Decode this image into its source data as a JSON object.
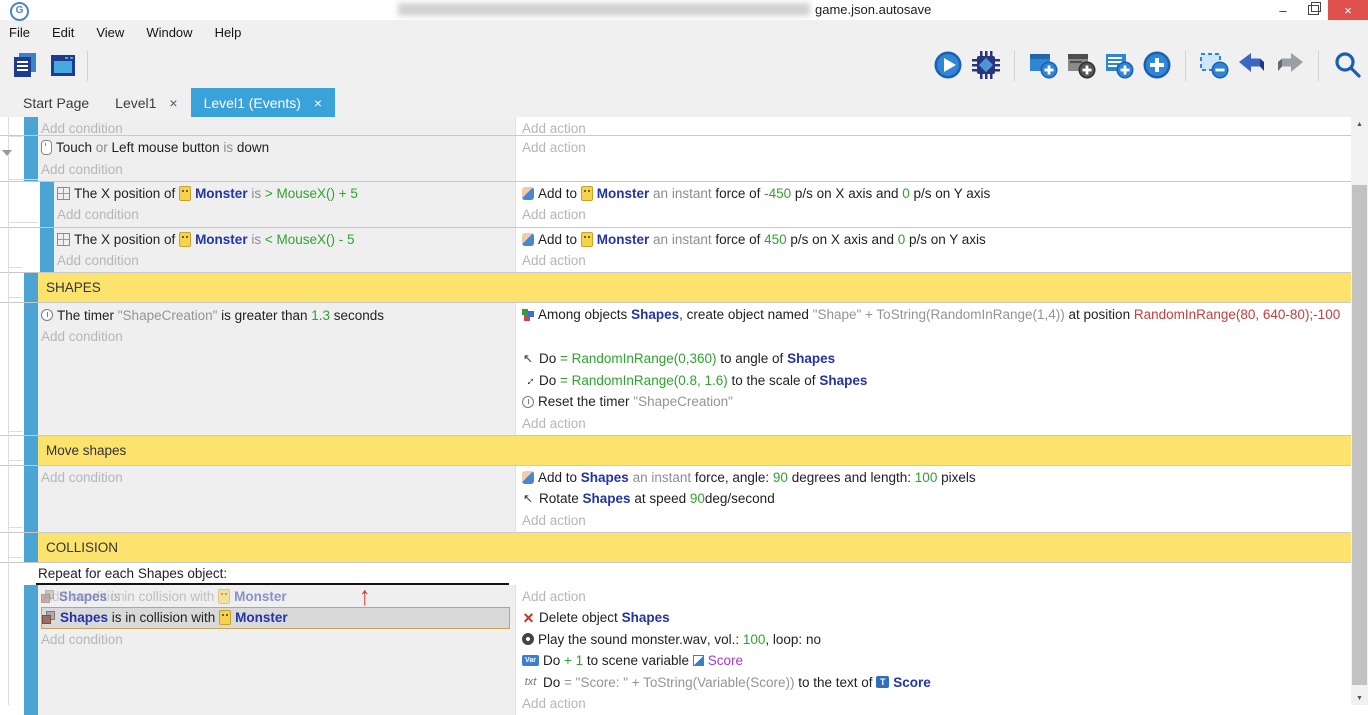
{
  "titlebar": {
    "title": "game.json.autosave",
    "minimize_glyph": "–",
    "close_glyph": "×"
  },
  "menus": [
    "File",
    "Edit",
    "View",
    "Window",
    "Help"
  ],
  "toolbar": {
    "left": [
      "project-manager",
      "scene-window"
    ],
    "right_groups": [
      [
        "play",
        "debug"
      ],
      [
        "add-event",
        "add-sub-event",
        "add-comment",
        "add-circle"
      ],
      [
        "delete-event",
        "undo",
        "redo"
      ],
      [
        "search"
      ]
    ]
  },
  "tabs": [
    {
      "label": "Start Page",
      "active": false,
      "closable": false
    },
    {
      "label": "Level1",
      "active": false,
      "closable": true,
      "close_glyph": "×"
    },
    {
      "label": "Level1 (Events)",
      "active": true,
      "closable": true,
      "close_glyph": "×"
    }
  ],
  "colors": {
    "accent_blue": "#39a2d9",
    "event_bar_blue": "#4ba4d4",
    "section_yellow": "#fce36e",
    "expression_green": "#2fa32f",
    "object_navy": "#2334a6",
    "variable_purple": "#a13bd2",
    "position_red": "#c24040",
    "selection_border": "#c9a452",
    "close_button_red": "#e0514e"
  },
  "scrollbar": {
    "up_glyph": "▲",
    "down_glyph": "▼"
  },
  "sheet": {
    "drag_arrow_glyph": "↑",
    "rows": [
      {
        "kind": "event",
        "indent": 0,
        "clip": true,
        "cond": [
          {
            "ph": "Add condition"
          }
        ],
        "act": [
          {
            "ph": "Add action"
          }
        ]
      },
      {
        "kind": "event",
        "indent": 0,
        "expander": true,
        "cond": [
          {
            "segs": [
              {
                "i": "mouse"
              },
              {
                "t": "Touch ",
                "k": "p"
              },
              {
                "t": "or ",
                "k": "m"
              },
              {
                "t": "Left mouse button ",
                "k": "p"
              },
              {
                "t": "is ",
                "k": "m"
              },
              {
                "t": "down",
                "k": "p"
              }
            ]
          },
          {
            "ph": "Add condition"
          }
        ],
        "act": [
          {
            "ph": "Add action"
          }
        ]
      },
      {
        "kind": "event",
        "indent": 1,
        "cond": [
          {
            "segs": [
              {
                "i": "position"
              },
              {
                "t": "The X position of ",
                "k": "p"
              },
              {
                "i": "monster"
              },
              {
                "t": "Monster ",
                "k": "o"
              },
              {
                "t": "is ",
                "k": "m"
              },
              {
                "t": "> MouseX() + 5",
                "k": "g"
              }
            ]
          },
          {
            "ph": "Add condition"
          }
        ],
        "act": [
          {
            "segs": [
              {
                "i": "force"
              },
              {
                "t": "Add to ",
                "k": "p"
              },
              {
                "i": "monster"
              },
              {
                "t": "Monster ",
                "k": "o"
              },
              {
                "t": "an instant ",
                "k": "m"
              },
              {
                "t": "force of ",
                "k": "p"
              },
              {
                "t": "-450",
                "k": "g"
              },
              {
                "t": " p/s on X axis and ",
                "k": "p"
              },
              {
                "t": "0",
                "k": "g"
              },
              {
                "t": " p/s on Y axis",
                "k": "p"
              }
            ]
          },
          {
            "ph": "Add action"
          }
        ]
      },
      {
        "kind": "event",
        "indent": 1,
        "cond": [
          {
            "segs": [
              {
                "i": "position"
              },
              {
                "t": "The X position of ",
                "k": "p"
              },
              {
                "i": "monster"
              },
              {
                "t": "Monster ",
                "k": "o"
              },
              {
                "t": "is ",
                "k": "m"
              },
              {
                "t": "< MouseX() - 5",
                "k": "g"
              }
            ]
          },
          {
            "ph": "Add condition"
          }
        ],
        "act": [
          {
            "segs": [
              {
                "i": "force"
              },
              {
                "t": "Add to ",
                "k": "p"
              },
              {
                "i": "monster"
              },
              {
                "t": "Monster ",
                "k": "o"
              },
              {
                "t": "an instant ",
                "k": "m"
              },
              {
                "t": "force of ",
                "k": "p"
              },
              {
                "t": "450",
                "k": "g"
              },
              {
                "t": " p/s on X axis and ",
                "k": "p"
              },
              {
                "t": "0",
                "k": "g"
              },
              {
                "t": " p/s on Y axis",
                "k": "p"
              }
            ]
          },
          {
            "ph": "Add action"
          }
        ]
      },
      {
        "kind": "header",
        "label": "SHAPES"
      },
      {
        "kind": "event",
        "indent": 0,
        "cond": [
          {
            "segs": [
              {
                "i": "timer"
              },
              {
                "t": "The timer ",
                "k": "p"
              },
              {
                "t": "\"ShapeCreation\" ",
                "k": "s"
              },
              {
                "t": "is greater than ",
                "k": "p"
              },
              {
                "t": "1.3",
                "k": "g"
              },
              {
                "t": " seconds",
                "k": "p"
              }
            ]
          },
          {
            "ph": "Add condition"
          }
        ],
        "act": [
          {
            "wrap": true,
            "segs": [
              {
                "i": "create"
              },
              {
                "t": "Among objects ",
                "k": "p"
              },
              {
                "t": "Shapes",
                "k": "o"
              },
              {
                "t": ", create object named ",
                "k": "p"
              },
              {
                "t": "\"Shape\" + ToString(RandomInRange(1,4))",
                "k": "s"
              },
              {
                "t": " at position ",
                "k": "p"
              },
              {
                "t": "RandomInRange(80, 640-80);-100",
                "k": "r"
              }
            ]
          },
          {
            "segs": [
              {
                "i": "angle"
              },
              {
                "t": "Do ",
                "k": "p"
              },
              {
                "t": "= RandomInRange(0,360)",
                "k": "g"
              },
              {
                "t": " to angle of ",
                "k": "p"
              },
              {
                "t": "Shapes",
                "k": "o"
              }
            ]
          },
          {
            "segs": [
              {
                "i": "scale"
              },
              {
                "t": "Do ",
                "k": "p"
              },
              {
                "t": "= RandomInRange(0.8, 1.6)",
                "k": "g"
              },
              {
                "t": " to the scale of ",
                "k": "p"
              },
              {
                "t": "Shapes",
                "k": "o"
              }
            ]
          },
          {
            "segs": [
              {
                "i": "timer"
              },
              {
                "t": "Reset the timer ",
                "k": "p"
              },
              {
                "t": "\"ShapeCreation\"",
                "k": "s"
              }
            ]
          },
          {
            "ph": "Add action"
          }
        ]
      },
      {
        "kind": "header",
        "label": "Move shapes"
      },
      {
        "kind": "event",
        "indent": 0,
        "cond": [
          {
            "ph": "Add condition"
          }
        ],
        "act": [
          {
            "segs": [
              {
                "i": "force"
              },
              {
                "t": "Add to ",
                "k": "p"
              },
              {
                "t": "Shapes",
                "k": "o"
              },
              {
                "t": " an instant ",
                "k": "m"
              },
              {
                "t": "force, angle: ",
                "k": "p"
              },
              {
                "t": "90",
                "k": "g"
              },
              {
                "t": " degrees and length: ",
                "k": "p"
              },
              {
                "t": "100",
                "k": "g"
              },
              {
                "t": " pixels",
                "k": "p"
              }
            ]
          },
          {
            "segs": [
              {
                "i": "angle"
              },
              {
                "t": "Rotate ",
                "k": "p"
              },
              {
                "t": "Shapes",
                "k": "o"
              },
              {
                "t": " at speed ",
                "k": "p"
              },
              {
                "t": "90",
                "k": "g"
              },
              {
                "t": "deg/second",
                "k": "p"
              }
            ]
          },
          {
            "ph": "Add action"
          }
        ]
      },
      {
        "kind": "header",
        "label": "COLLISION"
      },
      {
        "kind": "repeat",
        "label": "Repeat for each Shapes object:"
      },
      {
        "kind": "collision",
        "ghost_under": "Add condition",
        "ghost": [
          {
            "i": "collision"
          },
          {
            "t": "Shapes",
            "k": "o"
          },
          {
            "t": " is in collision with ",
            "k": "m"
          },
          {
            "i": "monster"
          },
          {
            "t": "Monster",
            "k": "o"
          }
        ],
        "selected": [
          {
            "i": "collision"
          },
          {
            "t": "Shapes ",
            "k": "o"
          },
          {
            "t": "is in collision with ",
            "k": "p"
          },
          {
            "i": "monster"
          },
          {
            "t": "Monster",
            "k": "o"
          }
        ],
        "cond_ph": "Add condition",
        "act": [
          {
            "ph": "Add action"
          },
          {
            "segs": [
              {
                "i": "delete"
              },
              {
                "t": "Delete object ",
                "k": "p"
              },
              {
                "t": "Shapes",
                "k": "o"
              }
            ]
          },
          {
            "segs": [
              {
                "i": "sound"
              },
              {
                "t": "Play the sound ",
                "k": "p"
              },
              {
                "t": "monster.wav",
                "k": "p"
              },
              {
                "t": ", vol.: ",
                "k": "p"
              },
              {
                "t": "100",
                "k": "g"
              },
              {
                "t": ", loop: ",
                "k": "p"
              },
              {
                "t": "no",
                "k": "p"
              }
            ]
          },
          {
            "segs": [
              {
                "i": "var"
              },
              {
                "t": "Do ",
                "k": "p"
              },
              {
                "t": "+ 1",
                "k": "g"
              },
              {
                "t": " to scene variable ",
                "k": "p"
              },
              {
                "i": "varlink"
              },
              {
                "t": "Score",
                "k": "v"
              }
            ]
          },
          {
            "segs": [
              {
                "i": "txt"
              },
              {
                "t": "Do ",
                "k": "p"
              },
              {
                "t": "= \"Score: \" + ToString(Variable(Score))",
                "k": "s"
              },
              {
                "t": " to the text of ",
                "k": "p"
              },
              {
                "i": "textobj"
              },
              {
                "t": "Score",
                "k": "o"
              }
            ]
          },
          {
            "ph": "Add action"
          }
        ]
      }
    ]
  }
}
